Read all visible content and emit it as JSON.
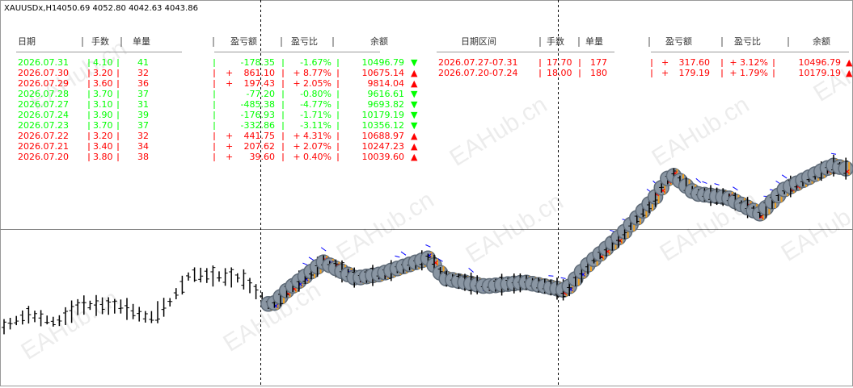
{
  "header": {
    "symbol": "XAUUSDx,H1",
    "quote": "4050.69 4052.80 4042.63 4043.86"
  },
  "watermark": "EAHub.cn",
  "daily_table": {
    "headers": [
      "日期",
      "手数",
      "单量",
      "盈亏额",
      "盈亏比",
      "余额"
    ],
    "rows": [
      {
        "date": "2026.07.31",
        "lots": "4.10",
        "count": "41",
        "sign": "",
        "profit": "-178.35",
        "pct": "-1.67%",
        "balance": "10496.79",
        "arrow": "▼",
        "color": "#00ff00"
      },
      {
        "date": "2026.07.30",
        "lots": "3.20",
        "count": "32",
        "sign": "+",
        "profit": "861.10",
        "pct": "+ 8.77%",
        "balance": "10675.14",
        "arrow": "▲",
        "color": "#ff0000"
      },
      {
        "date": "2026.07.29",
        "lots": "3.60",
        "count": "36",
        "sign": "+",
        "profit": "197.43",
        "pct": "+ 2.05%",
        "balance": "9814.04",
        "arrow": "▲",
        "color": "#ff0000"
      },
      {
        "date": "2026.07.28",
        "lots": "3.70",
        "count": "37",
        "sign": "",
        "profit": "-77.20",
        "pct": "-0.80%",
        "balance": "9616.61",
        "arrow": "▼",
        "color": "#00ff00"
      },
      {
        "date": "2026.07.27",
        "lots": "3.10",
        "count": "31",
        "sign": "",
        "profit": "-485.38",
        "pct": "-4.77%",
        "balance": "9693.82",
        "arrow": "▼",
        "color": "#00ff00"
      },
      {
        "date": "2026.07.24",
        "lots": "3.90",
        "count": "39",
        "sign": "",
        "profit": "-176.93",
        "pct": "-1.71%",
        "balance": "10179.19",
        "arrow": "▼",
        "color": "#00ff00"
      },
      {
        "date": "2026.07.23",
        "lots": "3.70",
        "count": "37",
        "sign": "",
        "profit": "-332.86",
        "pct": "-3.11%",
        "balance": "10356.12",
        "arrow": "▼",
        "color": "#00ff00"
      },
      {
        "date": "2026.07.22",
        "lots": "3.20",
        "count": "32",
        "sign": "+",
        "profit": "441.75",
        "pct": "+ 4.31%",
        "balance": "10688.97",
        "arrow": "▲",
        "color": "#ff0000"
      },
      {
        "date": "2026.07.21",
        "lots": "3.40",
        "count": "34",
        "sign": "+",
        "profit": "207.62",
        "pct": "+ 2.07%",
        "balance": "10247.23",
        "arrow": "▲",
        "color": "#ff0000"
      },
      {
        "date": "2026.07.20",
        "lots": "3.80",
        "count": "38",
        "sign": "+",
        "profit": "39.60",
        "pct": "+ 0.40%",
        "balance": "10039.60",
        "arrow": "▲",
        "color": "#ff0000"
      }
    ]
  },
  "weekly_table": {
    "headers": [
      "日期区间",
      "手数",
      "单量",
      "盈亏额",
      "盈亏比",
      "余额"
    ],
    "rows": [
      {
        "date": "2026.07.27-07.31",
        "lots": "17.70",
        "count": "177",
        "sign": "+",
        "profit": "317.60",
        "pct": "+ 3.12%",
        "balance": "10496.79",
        "arrow": "▲",
        "color": "#ff0000"
      },
      {
        "date": "2026.07.20-07.24",
        "lots": "18.00",
        "count": "180",
        "sign": "+",
        "profit": "179.19",
        "pct": "+ 1.79%",
        "balance": "10179.19",
        "arrow": "▲",
        "color": "#ff0000"
      }
    ]
  }
}
